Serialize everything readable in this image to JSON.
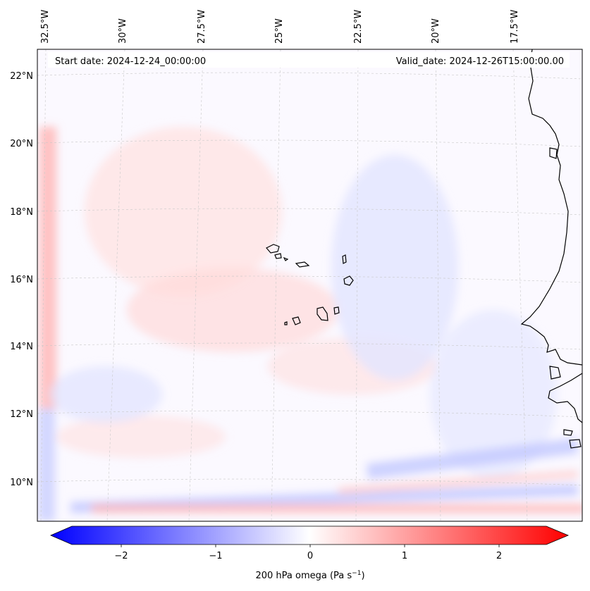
{
  "header": {
    "start_date": "Start date: 2024-12-24_00:00:00",
    "valid_date": "Valid_date: 2024-12-26T15:00:00.00"
  },
  "axes": {
    "lon_labels": [
      "32.5°W",
      "30°W",
      "27.5°W",
      "25°W",
      "22.5°W",
      "20°W",
      "17.5°W"
    ],
    "lat_labels": [
      "22°N",
      "20°N",
      "18°N",
      "16°N",
      "14°N",
      "12°N",
      "10°N"
    ]
  },
  "colorbar": {
    "label_main": "200 hPa omega (Pa s",
    "label_exp": "−1",
    "label_close": ")",
    "ticks": [
      "−2",
      "−1",
      "0",
      "1",
      "2"
    ],
    "range": [
      -2.6,
      2.6
    ],
    "low_color": "#0000ff",
    "mid_color": "#ffffff",
    "high_color": "#ff0000"
  },
  "field": {
    "background_color": "#fbf9ff",
    "positive_color": "#ffd9d9",
    "negative_color": "#dfe2ff"
  }
}
